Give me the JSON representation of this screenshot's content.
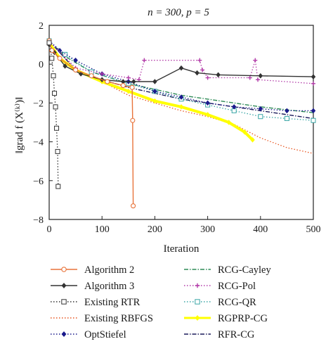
{
  "chart_data": {
    "type": "line",
    "title": "n = 300, p = 5",
    "xlabel": "Iteration",
    "ylabel": "‖grad f (X⁽ᵏ⁾)‖",
    "xlim": [
      0,
      500
    ],
    "ylim": [
      -8,
      2
    ],
    "xticks": [
      "0",
      "100",
      "200",
      "300",
      "400",
      "500"
    ],
    "yticks": [
      "2",
      "0",
      "−2",
      "−4",
      "−6",
      "−8"
    ],
    "grid": false,
    "legend_position": "bottom",
    "series": [
      {
        "name": "Algorithm 2",
        "color": "#e8743b",
        "marker": "circle-open",
        "dash": "solid",
        "points": [
          [
            0,
            1.2
          ],
          [
            5,
            0.7
          ],
          [
            20,
            0.3
          ],
          [
            50,
            -0.3
          ],
          [
            80,
            -0.6
          ],
          [
            110,
            -0.9
          ],
          [
            140,
            -1.1
          ],
          [
            157,
            -1.2
          ],
          [
            158,
            -2.9
          ],
          [
            159,
            -7.3
          ]
        ]
      },
      {
        "name": "Algorithm 3",
        "color": "#333333",
        "marker": "diamond-filled",
        "dash": "solid",
        "points": [
          [
            0,
            1.0
          ],
          [
            10,
            0.6
          ],
          [
            30,
            -0.1
          ],
          [
            60,
            -0.5
          ],
          [
            100,
            -0.8
          ],
          [
            140,
            -0.9
          ],
          [
            160,
            -0.9
          ],
          [
            200,
            -0.9
          ],
          [
            250,
            -0.2
          ],
          [
            280,
            -0.45
          ],
          [
            320,
            -0.55
          ],
          [
            400,
            -0.6
          ],
          [
            500,
            -0.65
          ]
        ]
      },
      {
        "name": "Existing RTR",
        "color": "#333333",
        "marker": "square-open",
        "dash": "dotted",
        "points": [
          [
            0,
            1.1
          ],
          [
            5,
            0.3
          ],
          [
            8,
            -0.6
          ],
          [
            10,
            -1.5
          ],
          [
            12,
            -2.2
          ],
          [
            14,
            -3.3
          ],
          [
            16,
            -4.5
          ],
          [
            17,
            -6.3
          ]
        ]
      },
      {
        "name": "Existing RBFGS",
        "color": "#e8541e",
        "marker": "none",
        "dash": "dotted",
        "points": [
          [
            0,
            1.2
          ],
          [
            50,
            -0.3
          ],
          [
            100,
            -0.9
          ],
          [
            150,
            -1.6
          ],
          [
            200,
            -2.0
          ],
          [
            250,
            -2.4
          ],
          [
            300,
            -2.7
          ],
          [
            350,
            -3.1
          ],
          [
            400,
            -3.8
          ],
          [
            450,
            -4.3
          ],
          [
            500,
            -4.6
          ]
        ]
      },
      {
        "name": "OptStiefel",
        "color": "#1a1a8c",
        "marker": "diamond-filled",
        "dash": "dotted",
        "points": [
          [
            0,
            1.2
          ],
          [
            20,
            0.7
          ],
          [
            50,
            0.2
          ],
          [
            100,
            -0.5
          ],
          [
            150,
            -0.9
          ],
          [
            200,
            -1.4
          ],
          [
            250,
            -1.7
          ],
          [
            300,
            -2.0
          ],
          [
            350,
            -2.2
          ],
          [
            400,
            -2.3
          ],
          [
            450,
            -2.4
          ],
          [
            500,
            -2.4
          ]
        ]
      },
      {
        "name": "RCG-Cayley",
        "color": "#2e8b57",
        "marker": "none",
        "dash": "dashdot",
        "points": [
          [
            0,
            1.2
          ],
          [
            30,
            0.4
          ],
          [
            80,
            -0.4
          ],
          [
            150,
            -1.0
          ],
          [
            200,
            -1.3
          ],
          [
            250,
            -1.6
          ],
          [
            300,
            -1.8
          ],
          [
            350,
            -2.0
          ],
          [
            400,
            -2.2
          ],
          [
            500,
            -2.5
          ]
        ]
      },
      {
        "name": "RCG-Pol",
        "color": "#b23aa8",
        "marker": "plus",
        "dash": "dotted",
        "points": [
          [
            0,
            1.2
          ],
          [
            50,
            -0.2
          ],
          [
            100,
            -0.5
          ],
          [
            150,
            -0.7
          ],
          [
            170,
            -0.8
          ],
          [
            180,
            0.2
          ],
          [
            285,
            0.2
          ],
          [
            290,
            -0.3
          ],
          [
            300,
            -0.7
          ],
          [
            380,
            -0.7
          ],
          [
            390,
            0.2
          ],
          [
            395,
            -0.8
          ],
          [
            500,
            -1.0
          ]
        ]
      },
      {
        "name": "RCG-QR",
        "color": "#3aa6a6",
        "marker": "square-open",
        "dash": "dotted",
        "points": [
          [
            0,
            1.2
          ],
          [
            30,
            0.5
          ],
          [
            80,
            -0.4
          ],
          [
            150,
            -1.0
          ],
          [
            200,
            -1.4
          ],
          [
            250,
            -1.8
          ],
          [
            300,
            -2.1
          ],
          [
            350,
            -2.4
          ],
          [
            400,
            -2.7
          ],
          [
            450,
            -2.8
          ],
          [
            500,
            -2.9
          ]
        ]
      },
      {
        "name": "RGPRP-CG",
        "color": "#ffff00",
        "marker": "diamond-filled",
        "dash": "solid",
        "points": [
          [
            0,
            1.1
          ],
          [
            20,
            0.3
          ],
          [
            50,
            -0.3
          ],
          [
            100,
            -0.9
          ],
          [
            150,
            -1.4
          ],
          [
            200,
            -1.9
          ],
          [
            250,
            -2.2
          ],
          [
            300,
            -2.6
          ],
          [
            340,
            -3.0
          ],
          [
            370,
            -3.5
          ],
          [
            385,
            -3.9
          ]
        ]
      },
      {
        "name": "RFR-CG",
        "color": "#1a1a5a",
        "marker": "none",
        "dash": "dashdot",
        "points": [
          [
            0,
            1.2
          ],
          [
            50,
            -0.3
          ],
          [
            100,
            -0.8
          ],
          [
            150,
            -1.2
          ],
          [
            200,
            -1.5
          ],
          [
            250,
            -1.8
          ],
          [
            300,
            -2.0
          ],
          [
            350,
            -2.2
          ],
          [
            400,
            -2.4
          ],
          [
            450,
            -2.6
          ],
          [
            500,
            -2.8
          ]
        ]
      }
    ]
  }
}
